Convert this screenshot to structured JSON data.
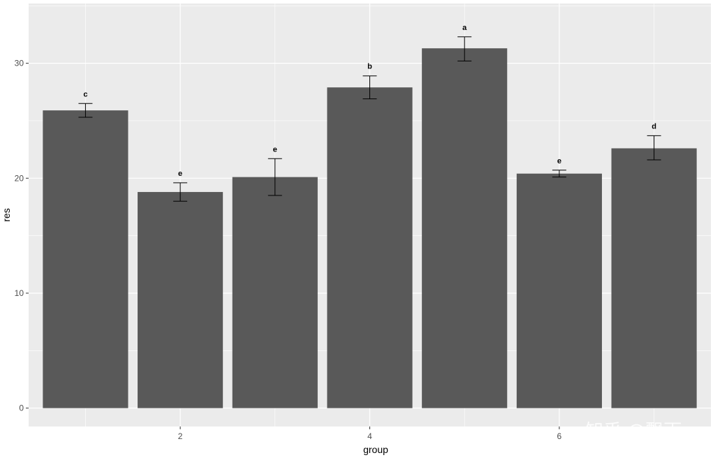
{
  "chart_data": {
    "type": "bar",
    "x": [
      1,
      2,
      3,
      4,
      5,
      6,
      7
    ],
    "values": [
      25.9,
      18.8,
      20.1,
      27.9,
      31.3,
      20.4,
      22.6
    ],
    "error_low": [
      25.3,
      18.0,
      18.5,
      26.9,
      30.2,
      20.1,
      21.6
    ],
    "error_high": [
      26.5,
      19.6,
      21.7,
      28.9,
      32.3,
      20.7,
      23.7
    ],
    "significance_labels": [
      "c",
      "e",
      "e",
      "b",
      "a",
      "e",
      "d"
    ],
    "xlabel": "group",
    "ylabel": "res",
    "x_ticks": [
      2,
      4,
      6
    ],
    "y_ticks": [
      0,
      10,
      20,
      30
    ],
    "xlim": [
      0.4,
      7.6
    ],
    "ylim": [
      -1.6,
      35.2
    ],
    "grid": true,
    "colors": {
      "bar": "#595959",
      "panel": "#ebebeb",
      "grid": "#ffffff",
      "errorbar": "#000000"
    }
  },
  "watermark": "知乎 @飘雨"
}
